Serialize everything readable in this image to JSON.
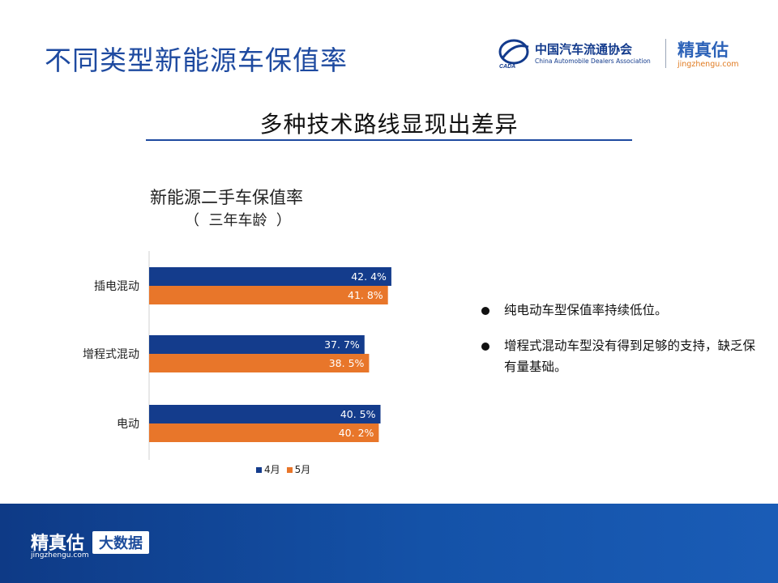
{
  "header": {
    "title": "不同类型新能源车保值率",
    "caada_cn": "中国汽车流通协会",
    "caada_en": "China Automobile Dealers Association",
    "caada_mark_text": "CADA",
    "jz_cn": "精真估",
    "jz_url": "jingzhengu.com"
  },
  "subtitle": "多种技术路线显现出差异",
  "chart_data": {
    "type": "bar",
    "orientation": "horizontal",
    "title": "新能源二手车保值率",
    "subtitle": "（  三年车龄  ）",
    "categories": [
      "插电混动",
      "增程式混动",
      "电动"
    ],
    "series": [
      {
        "name": "4月",
        "values": [
          42.4,
          37.7,
          40.5
        ],
        "labels": [
          "42. 4%",
          "37. 7%",
          "40. 5%"
        ],
        "color": "#143c8c"
      },
      {
        "name": "5月",
        "values": [
          41.8,
          38.5,
          40.2
        ],
        "labels": [
          "41. 8%",
          "38. 5%",
          "40. 2%"
        ],
        "color": "#e8762a"
      }
    ],
    "xlim": [
      0,
      100
    ],
    "grid": false,
    "legend": "bottom"
  },
  "bullets": [
    "纯电动车型保值率持续低位。",
    "增程式混动车型没有得到足够的支持，缺乏保有量基础。"
  ],
  "footer": {
    "brand_cn": "精真估",
    "brand_url": "jingzhengu.com",
    "badge": "大数据"
  },
  "colors": {
    "accent": "#1e4aa0",
    "footer": "#1452a8"
  }
}
